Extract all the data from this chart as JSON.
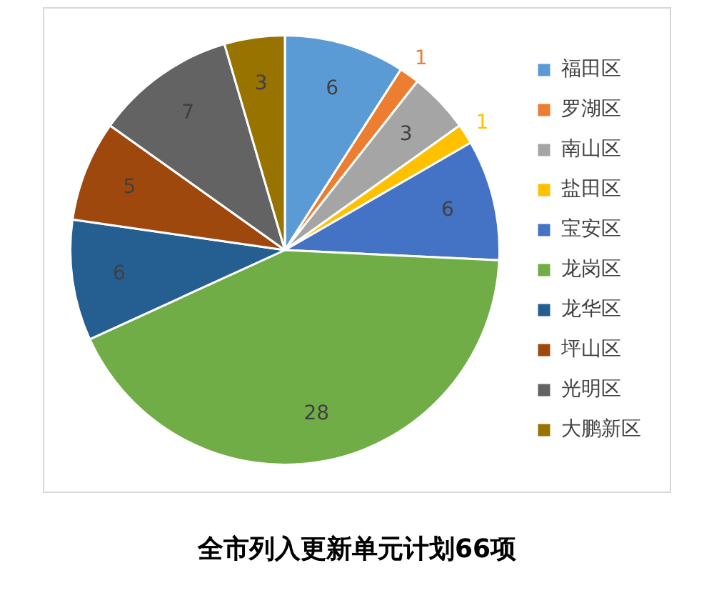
{
  "chart_data": {
    "type": "pie",
    "title": "全市列入更新单元计划66项",
    "categories": [
      "福田区",
      "罗湖区",
      "南山区",
      "盐田区",
      "宝安区",
      "龙岗区",
      "龙华区",
      "坪山区",
      "光明区",
      "大鹏新区"
    ],
    "values": [
      6,
      1,
      3,
      1,
      6,
      28,
      6,
      5,
      7,
      3
    ],
    "colors": [
      "#5b9bd5",
      "#ed7d31",
      "#a5a5a5",
      "#ffc000",
      "#4472c4",
      "#70ad47",
      "#255e91",
      "#9e480e",
      "#636363",
      "#997300"
    ],
    "data_labels": true,
    "legend": "right"
  }
}
